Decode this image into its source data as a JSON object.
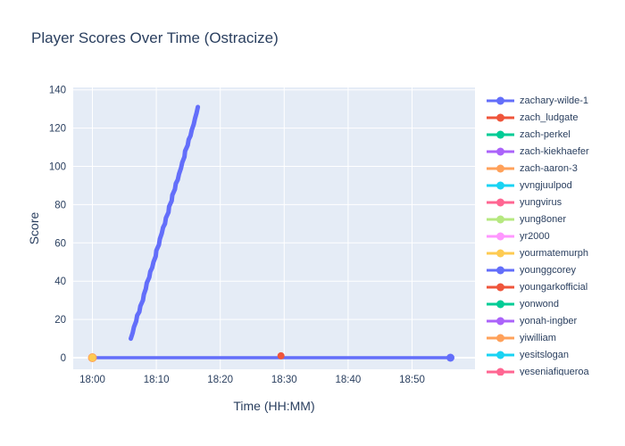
{
  "chart_data": {
    "type": "line",
    "title": "Player Scores Over Time (Ostracize)",
    "xlabel": "Time (HH:MM)",
    "ylabel": "Score",
    "x_tick_labels": [
      "18:00",
      "18:10",
      "18:20",
      "18:30",
      "18:40",
      "18:50"
    ],
    "x_tick_minutes": [
      0,
      10,
      20,
      30,
      40,
      50
    ],
    "y_ticks": [
      0,
      20,
      40,
      60,
      80,
      100,
      120,
      140
    ],
    "x_range_minutes": [
      -3.0,
      59.9
    ],
    "ylim": [
      -6,
      141
    ],
    "grid": true,
    "legend_position": "right",
    "colors": {
      "plot_bg": "#E5ECF6",
      "grid": "#FFFFFF",
      "text": "#2A3F5F",
      "paper_bg": "#FFFFFF"
    },
    "legend": [
      {
        "label": "zachary-wilde-1",
        "color": "#636EFA"
      },
      {
        "label": "zach_ludgate",
        "color": "#EF553B"
      },
      {
        "label": "zach-perkel",
        "color": "#00CC96"
      },
      {
        "label": "zach-kiekhaefer",
        "color": "#AB63FA"
      },
      {
        "label": "zach-aaron-3",
        "color": "#FFA15A"
      },
      {
        "label": "yvngjuulpod",
        "color": "#19D3F3"
      },
      {
        "label": "yungvirus",
        "color": "#FF6692"
      },
      {
        "label": "yung8oner",
        "color": "#B6E880"
      },
      {
        "label": "yr2000",
        "color": "#FF97FF"
      },
      {
        "label": "yourmatemurph",
        "color": "#FECB52"
      },
      {
        "label": "younggcorey",
        "color": "#636EFA"
      },
      {
        "label": "youngarkofficial",
        "color": "#EF553B"
      },
      {
        "label": "yonwond",
        "color": "#00CC96"
      },
      {
        "label": "yonah-ingber",
        "color": "#AB63FA"
      },
      {
        "label": "yiwilliam",
        "color": "#FFA15A"
      },
      {
        "label": "yesitslogan",
        "color": "#19D3F3"
      },
      {
        "label": "yeseniafigueroa",
        "color": "#FF6692"
      }
    ],
    "series": [
      {
        "name": "zachary-wilde-1",
        "color": "#636EFA",
        "mode": "thick-line",
        "line_width": 5,
        "points": [
          [
            6.0,
            10
          ],
          [
            6.3,
            13
          ],
          [
            6.5,
            16
          ],
          [
            6.85,
            19
          ],
          [
            7.0,
            22
          ],
          [
            7.35,
            24
          ],
          [
            7.5,
            27
          ],
          [
            7.9,
            30
          ],
          [
            8.05,
            33
          ],
          [
            8.35,
            36
          ],
          [
            8.5,
            39
          ],
          [
            8.9,
            42
          ],
          [
            9.05,
            45
          ],
          [
            9.35,
            47
          ],
          [
            9.55,
            50
          ],
          [
            9.9,
            53
          ],
          [
            10.0,
            56
          ],
          [
            10.4,
            59
          ],
          [
            10.55,
            62
          ],
          [
            10.85,
            65
          ],
          [
            11.05,
            68
          ],
          [
            11.35,
            70
          ],
          [
            11.5,
            73
          ],
          [
            11.9,
            76
          ],
          [
            12.0,
            79
          ],
          [
            12.4,
            82
          ],
          [
            12.5,
            85
          ],
          [
            12.9,
            88
          ],
          [
            13.05,
            91
          ],
          [
            13.35,
            93
          ],
          [
            13.55,
            96
          ],
          [
            13.85,
            99
          ],
          [
            14.05,
            102
          ],
          [
            14.4,
            105
          ],
          [
            14.5,
            108
          ],
          [
            14.9,
            111
          ],
          [
            15.05,
            114
          ],
          [
            15.35,
            116
          ],
          [
            15.55,
            119
          ],
          [
            15.85,
            122
          ],
          [
            16.05,
            125
          ],
          [
            16.3,
            128
          ],
          [
            16.5,
            131
          ]
        ]
      },
      {
        "name": "younggcorey",
        "color": "#636EFA",
        "mode": "line-markers",
        "line_width": 3.5,
        "marker_size": 4.5,
        "points": [
          [
            0,
            0
          ],
          [
            56,
            0
          ]
        ]
      },
      {
        "name": "yiwilliam",
        "color": "#FFA15A",
        "mode": "marker",
        "marker_size": 5,
        "points": [
          [
            0,
            0
          ]
        ]
      },
      {
        "name": "yourmatemurph",
        "color": "#FECB52",
        "mode": "marker",
        "marker_size": 4,
        "points": [
          [
            0,
            0
          ]
        ]
      },
      {
        "name": "youngarkofficial",
        "color": "#EF553B",
        "mode": "marker",
        "marker_size": 4,
        "points": [
          [
            29.5,
            1
          ]
        ]
      }
    ]
  }
}
